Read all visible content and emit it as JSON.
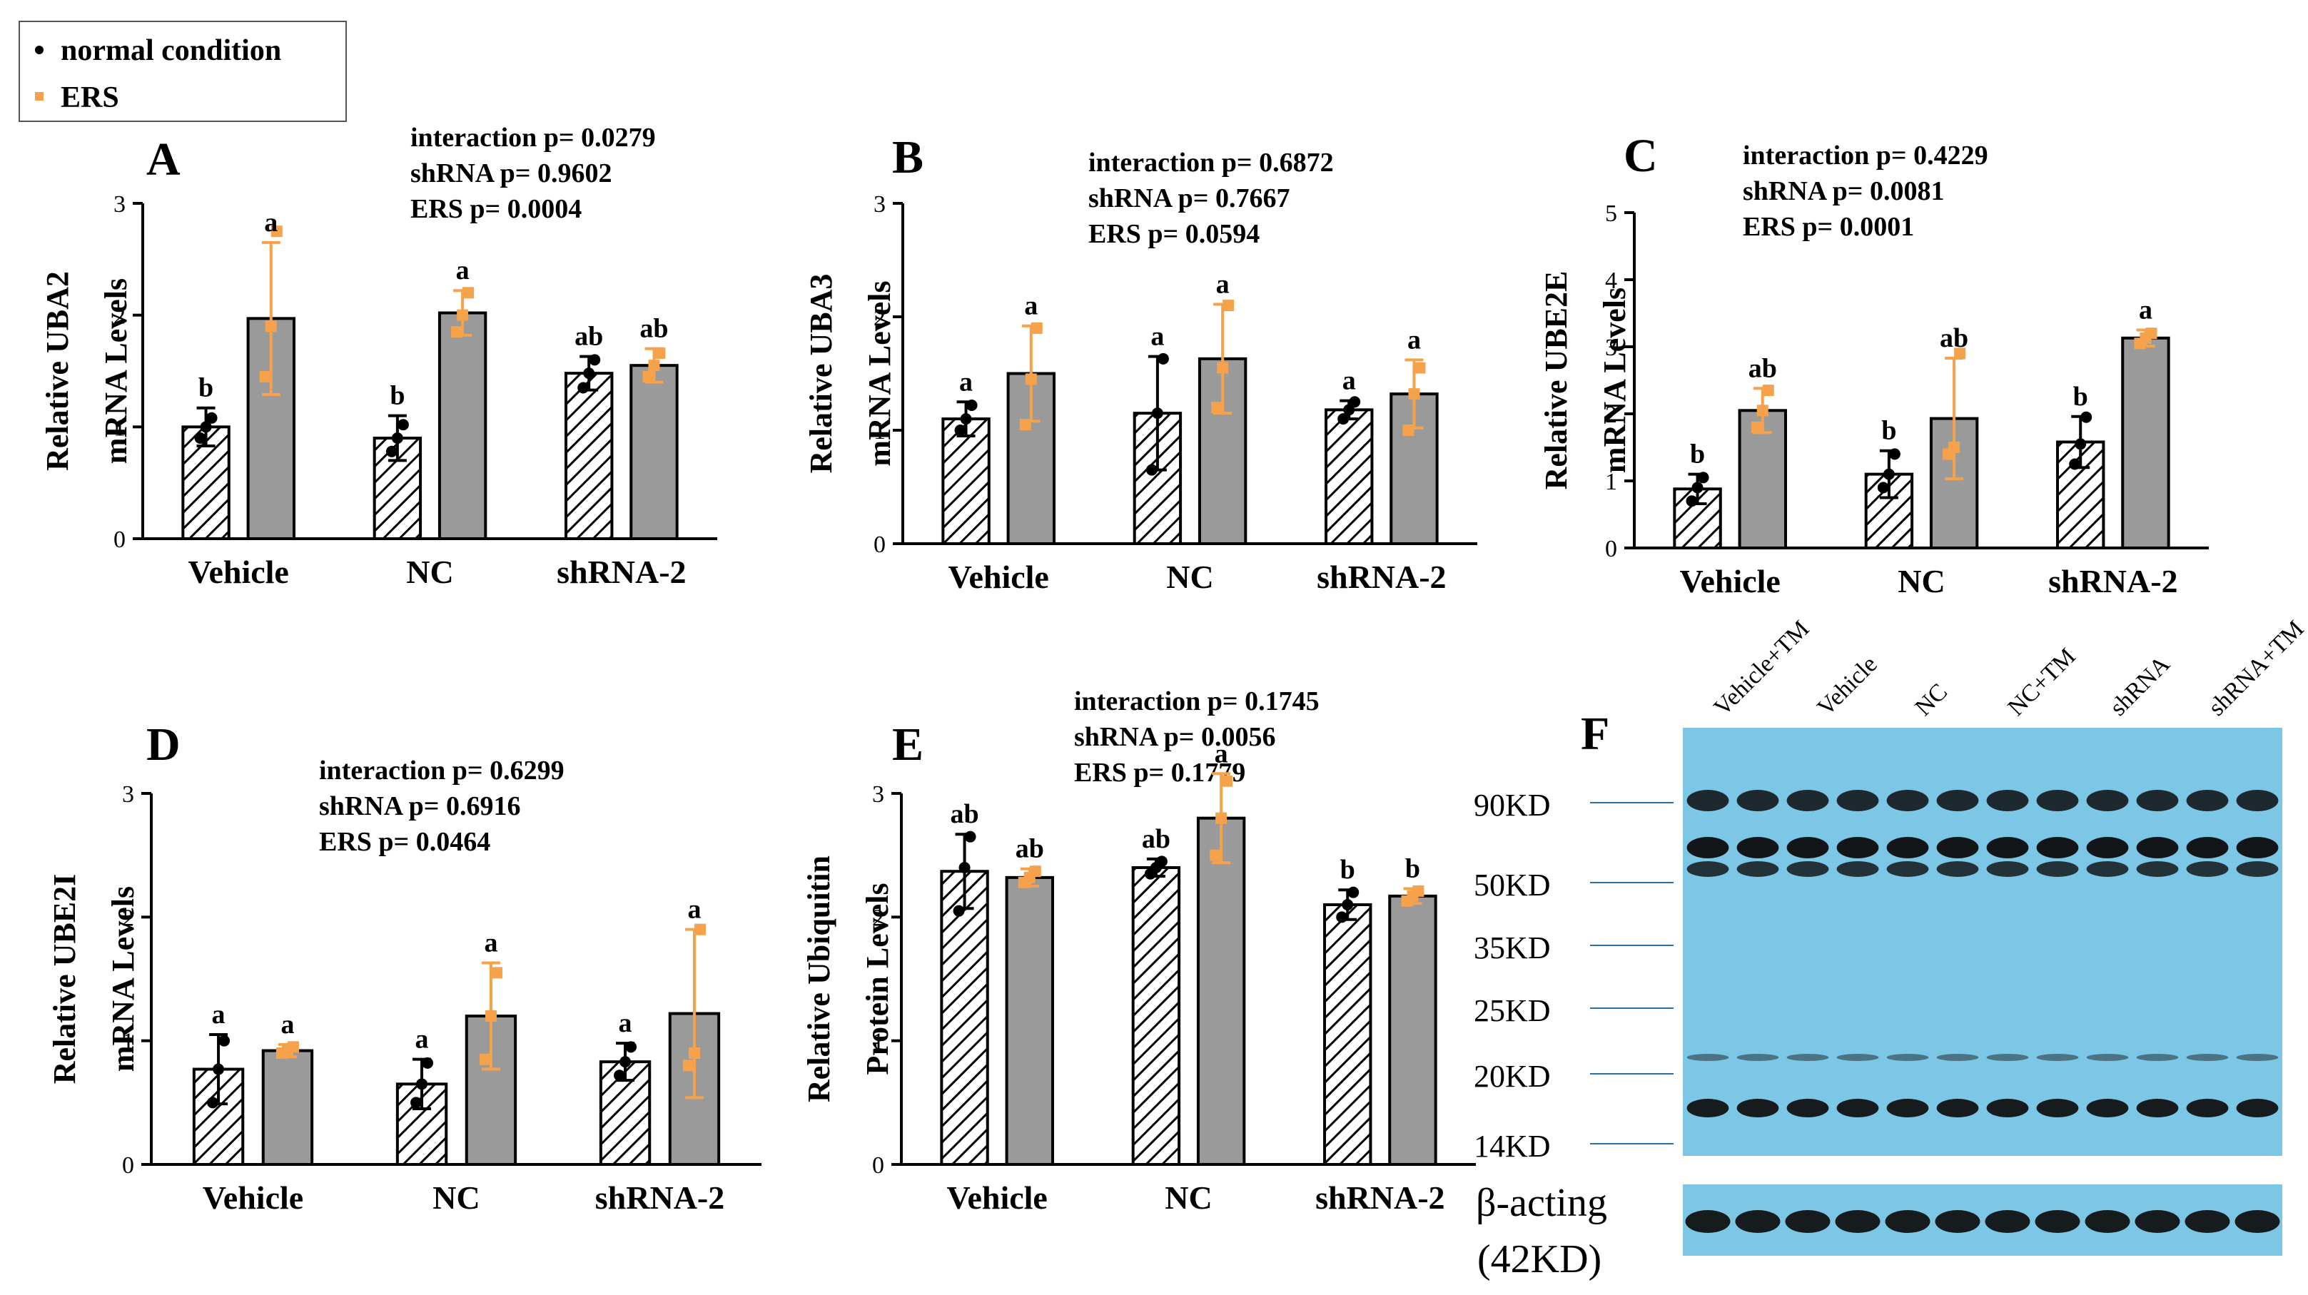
{
  "legend": {
    "items": [
      {
        "label": "normal condition",
        "color": "#000000"
      },
      {
        "label": "ERS",
        "color": "#F5A24B"
      }
    ]
  },
  "colors": {
    "normal_fill": "#ffffff",
    "ers_fill": "#9a9a9a",
    "ers_point": "#F5A24B",
    "normal_point": "#000000",
    "blot_bg": "#7CC6E6",
    "band": "#0d0d0d"
  },
  "chart_data": [
    {
      "id": "A",
      "panel_label": "A",
      "type": "bar",
      "ylabel_line1": "Relative UBA2",
      "ylabel_line2": "mRNA Levels",
      "ylim": [
        0,
        3
      ],
      "yticks": [
        "0",
        "1",
        "2",
        "3"
      ],
      "categories": [
        "Vehicle",
        "NC",
        "shRNA-2"
      ],
      "stats": [
        "interaction p=  0.0279",
        "shRNA p=  0.9602",
        "ERS  p=  0.0004"
      ],
      "series": [
        {
          "name": "normal condition",
          "values": [
            1.0,
            0.9,
            1.48
          ],
          "err": [
            0.17,
            0.2,
            0.15
          ],
          "letters": [
            "b",
            "b",
            "ab"
          ],
          "points": [
            [
              0.9,
              1.0,
              1.08
            ],
            [
              0.78,
              0.9,
              1.02
            ],
            [
              1.35,
              1.48,
              1.6
            ]
          ]
        },
        {
          "name": "ERS",
          "values": [
            1.97,
            2.02,
            1.55
          ],
          "err": [
            0.68,
            0.2,
            0.15
          ],
          "letters": [
            "a",
            "a",
            "ab"
          ],
          "points": [
            [
              1.45,
              1.9,
              2.75
            ],
            [
              1.85,
              2.0,
              2.2
            ],
            [
              1.45,
              1.55,
              1.66
            ]
          ]
        }
      ]
    },
    {
      "id": "B",
      "panel_label": "B",
      "type": "bar",
      "ylabel_line1": "Relative UBA3",
      "ylabel_line2": "mRNA Levels",
      "ylim": [
        0,
        3
      ],
      "yticks": [
        "0",
        "1",
        "2",
        "3"
      ],
      "categories": [
        "Vehicle",
        "NC",
        "shRNA-2"
      ],
      "stats": [
        "interaction p=  0.6872",
        "shRNA p=  0.7667",
        "ERS  p=  0.0594"
      ],
      "series": [
        {
          "name": "normal condition",
          "values": [
            1.1,
            1.15,
            1.18
          ],
          "err": [
            0.15,
            0.5,
            0.08
          ],
          "letters": [
            "a",
            "a",
            "a"
          ],
          "points": [
            [
              1.0,
              1.1,
              1.22
            ],
            [
              0.65,
              1.15,
              1.63
            ],
            [
              1.1,
              1.18,
              1.25
            ]
          ]
        },
        {
          "name": "ERS",
          "values": [
            1.5,
            1.63,
            1.32
          ],
          "err": [
            0.42,
            0.48,
            0.3
          ],
          "letters": [
            "a",
            "a",
            "a"
          ],
          "points": [
            [
              1.05,
              1.45,
              1.9
            ],
            [
              1.2,
              1.55,
              2.1
            ],
            [
              1.0,
              1.32,
              1.55
            ]
          ]
        }
      ]
    },
    {
      "id": "C",
      "panel_label": "C",
      "type": "bar",
      "ylabel_line1": "Relative UBE2E",
      "ylabel_line2": "mRNA Levels",
      "ylim": [
        0,
        5
      ],
      "yticks": [
        "0",
        "1",
        "2",
        "3",
        "4",
        "5"
      ],
      "categories": [
        "Vehicle",
        "NC",
        "shRNA-2"
      ],
      "stats": [
        "interaction p=  0.4229",
        "shRNA p=  0.0081",
        "ERS  p=  0.0001"
      ],
      "series": [
        {
          "name": "normal condition",
          "values": [
            0.88,
            1.1,
            1.58
          ],
          "err": [
            0.22,
            0.35,
            0.38
          ],
          "letters": [
            "b",
            "b",
            "b"
          ],
          "points": [
            [
              0.7,
              0.9,
              1.05
            ],
            [
              0.9,
              1.1,
              1.4
            ],
            [
              1.25,
              1.55,
              1.95
            ]
          ]
        },
        {
          "name": "ERS",
          "values": [
            2.05,
            1.93,
            3.13
          ],
          "err": [
            0.33,
            0.9,
            0.12
          ],
          "letters": [
            "ab",
            "ab",
            "a"
          ],
          "points": [
            [
              1.8,
              2.05,
              2.35
            ],
            [
              1.4,
              1.5,
              2.9
            ],
            [
              3.05,
              3.13,
              3.2
            ]
          ]
        }
      ]
    },
    {
      "id": "D",
      "panel_label": "D",
      "type": "bar",
      "ylabel_line1": "Relative UBE2I",
      "ylabel_line2": "mRNA Levels",
      "ylim": [
        0,
        3
      ],
      "yticks": [
        "0",
        "1",
        "2",
        "3"
      ],
      "categories": [
        "Vehicle",
        "NC",
        "shRNA-2"
      ],
      "stats": [
        "interaction p=  0.6299",
        "shRNA p=  0.6916",
        "ERS  p=  0.0464"
      ],
      "series": [
        {
          "name": "normal condition",
          "values": [
            0.77,
            0.65,
            0.83
          ],
          "err": [
            0.28,
            0.2,
            0.15
          ],
          "letters": [
            "a",
            "a",
            "a"
          ],
          "points": [
            [
              0.5,
              0.77,
              1.0
            ],
            [
              0.5,
              0.65,
              0.82
            ],
            [
              0.72,
              0.83,
              0.95
            ]
          ]
        },
        {
          "name": "ERS",
          "values": [
            0.92,
            1.2,
            1.22
          ],
          "err": [
            0.05,
            0.43,
            0.68
          ],
          "letters": [
            "a",
            "a",
            "a"
          ],
          "points": [
            [
              0.9,
              0.92,
              0.95
            ],
            [
              0.85,
              1.2,
              1.55
            ],
            [
              0.8,
              0.9,
              1.9
            ]
          ]
        }
      ]
    },
    {
      "id": "E",
      "panel_label": "E",
      "type": "bar",
      "ylabel_line1": "Relative Ubiquitin",
      "ylabel_line2": "Protein Levels",
      "ylim": [
        0,
        3
      ],
      "yticks": [
        "0",
        "1",
        "2",
        "3"
      ],
      "categories": [
        "Vehicle",
        "NC",
        "shRNA-2"
      ],
      "stats": [
        "interaction p=  0.1745",
        "shRNA p=  0.0056",
        "ERS  p=  0.1779"
      ],
      "series": [
        {
          "name": "normal condition",
          "values": [
            2.37,
            2.4,
            2.1
          ],
          "err": [
            0.3,
            0.07,
            0.12
          ],
          "letters": [
            "ab",
            "ab",
            "b"
          ],
          "points": [
            [
              2.05,
              2.4,
              2.65
            ],
            [
              2.35,
              2.4,
              2.45
            ],
            [
              2.0,
              2.1,
              2.2
            ]
          ]
        },
        {
          "name": "ERS",
          "values": [
            2.32,
            2.8,
            2.17
          ],
          "err": [
            0.07,
            0.36,
            0.06
          ],
          "letters": [
            "ab",
            "a",
            "b"
          ],
          "points": [
            [
              2.28,
              2.32,
              2.37
            ],
            [
              2.5,
              2.8,
              3.1
            ],
            [
              2.13,
              2.17,
              2.21
            ]
          ]
        }
      ]
    }
  ],
  "blot": {
    "panel_label": "F",
    "lanes": [
      "Vehicle+TM",
      "Vehicle",
      "NC",
      "NC+TM",
      "shRNA",
      "shRNA+TM"
    ],
    "markers": [
      "90KD",
      "50KD",
      "35KD",
      "25KD",
      "20KD",
      "14KD"
    ],
    "beta_label_line1": "β-acting",
    "beta_label_line2": "(42KD)"
  }
}
